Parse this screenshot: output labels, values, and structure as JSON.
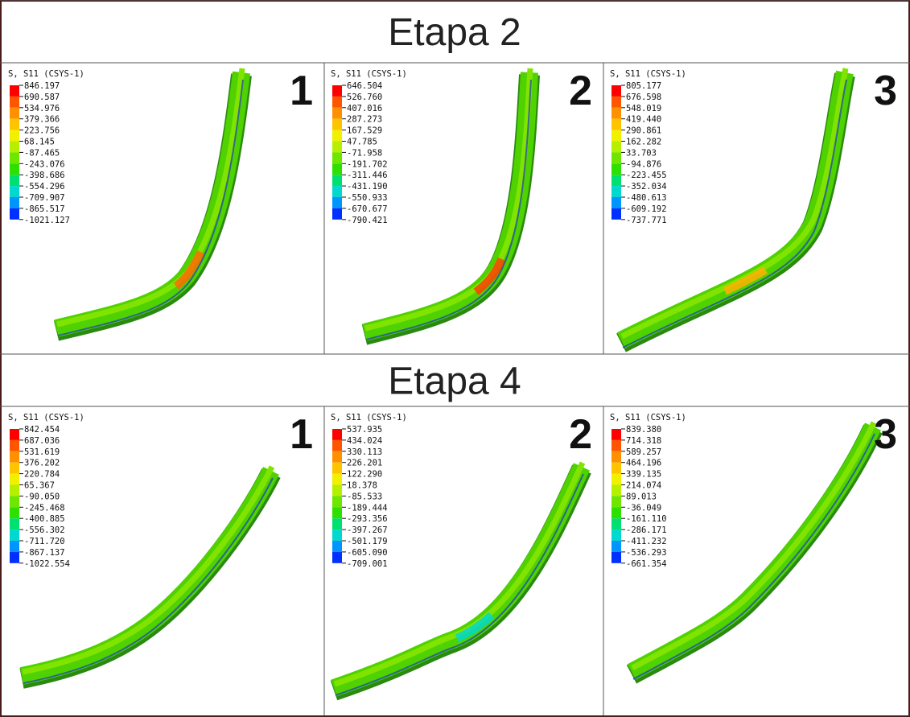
{
  "sections": [
    {
      "title": "Etapa 2",
      "panels": [
        {
          "number": "1",
          "legend_title": "S, S11 (CSYS-1)",
          "legend_values": [
            "846.197",
            "690.587",
            "534.976",
            "379.366",
            "223.756",
            "68.145",
            "-87.465",
            "-243.076",
            "-398.686",
            "-554.296",
            "-709.907",
            "-865.517",
            "-1021.127"
          ]
        },
        {
          "number": "2",
          "legend_title": "S, S11 (CSYS-1)",
          "legend_values": [
            "646.504",
            "526.760",
            "407.016",
            "287.273",
            "167.529",
            "47.785",
            "-71.958",
            "-191.702",
            "-311.446",
            "-431.190",
            "-550.933",
            "-670.677",
            "-790.421"
          ]
        },
        {
          "number": "3",
          "legend_title": "S, S11 (CSYS-1)",
          "legend_values": [
            "805.177",
            "676.598",
            "548.019",
            "419.440",
            "290.861",
            "162.282",
            "33.703",
            "-94.876",
            "-223.455",
            "-352.034",
            "-480.613",
            "-609.192",
            "-737.771"
          ]
        }
      ]
    },
    {
      "title": "Etapa 4",
      "panels": [
        {
          "number": "1",
          "legend_title": "S, S11 (CSYS-1)",
          "legend_values": [
            "842.454",
            "687.036",
            "531.619",
            "376.202",
            "220.784",
            "65.367",
            "-90.050",
            "-245.468",
            "-400.885",
            "-556.302",
            "-711.720",
            "-867.137",
            "-1022.554"
          ]
        },
        {
          "number": "2",
          "legend_title": "S, S11 (CSYS-1)",
          "legend_values": [
            "537.935",
            "434.024",
            "330.113",
            "226.201",
            "122.290",
            "18.378",
            "-85.533",
            "-189.444",
            "-293.356",
            "-397.267",
            "-501.179",
            "-605.090",
            "-709.001"
          ]
        },
        {
          "number": "3",
          "legend_title": "S, S11 (CSYS-1)",
          "legend_values": [
            "839.380",
            "714.318",
            "589.257",
            "464.196",
            "339.135",
            "214.074",
            "89.013",
            "-36.049",
            "-161.110",
            "-286.171",
            "-411.232",
            "-536.293",
            "-661.354"
          ]
        }
      ]
    }
  ]
}
